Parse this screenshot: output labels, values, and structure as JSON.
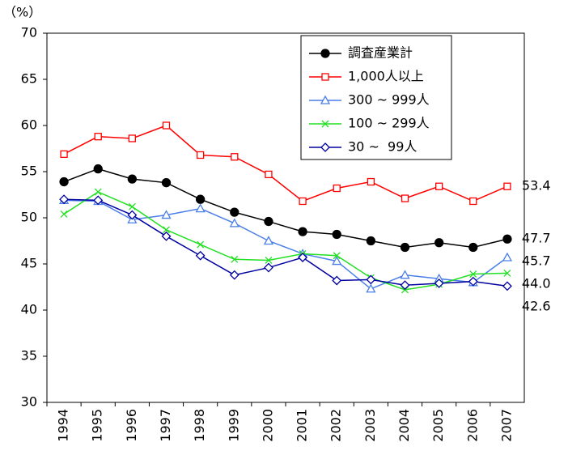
{
  "chart_data": {
    "type": "line",
    "y_unit_label": "（%）",
    "categories": [
      "1994",
      "1995",
      "1996",
      "1997",
      "1998",
      "1999",
      "2000",
      "2001",
      "2002",
      "2003",
      "2004",
      "2005",
      "2006",
      "2007"
    ],
    "ylim": [
      30,
      70
    ],
    "yticks": [
      30,
      35,
      40,
      45,
      50,
      55,
      60,
      65,
      70
    ],
    "series": [
      {
        "name": "調査産業計",
        "color": "#000000",
        "marker": "circle",
        "values": [
          53.9,
          55.3,
          54.2,
          53.8,
          52.0,
          50.6,
          49.6,
          48.5,
          48.2,
          47.5,
          46.8,
          47.3,
          46.8,
          47.7
        ],
        "value_labels": [
          null,
          null,
          null,
          null,
          null,
          null,
          null,
          null,
          null,
          null,
          null,
          null,
          null,
          "47.7"
        ]
      },
      {
        "name": "1,000人以上",
        "color": "#ff0000",
        "marker": "square",
        "values": [
          56.9,
          58.8,
          58.6,
          60.0,
          56.8,
          56.6,
          54.7,
          51.8,
          53.2,
          53.9,
          52.1,
          53.4,
          51.8,
          53.4
        ],
        "value_labels": [
          null,
          null,
          null,
          null,
          null,
          null,
          null,
          null,
          null,
          null,
          null,
          null,
          null,
          "53.4"
        ]
      },
      {
        "name": "300 ~ 999人",
        "color": "#4a7fe8",
        "marker": "triangle",
        "values": [
          51.9,
          51.8,
          49.8,
          50.3,
          51.0,
          49.4,
          47.5,
          46.1,
          45.3,
          42.3,
          43.8,
          43.4,
          43.0,
          45.7
        ],
        "value_labels": [
          null,
          null,
          null,
          null,
          null,
          null,
          null,
          null,
          null,
          null,
          null,
          null,
          null,
          "45.7"
        ]
      },
      {
        "name": "100 ~ 299人",
        "color": "#22e022",
        "marker": "x",
        "values": [
          50.4,
          52.8,
          51.2,
          48.7,
          47.1,
          45.5,
          45.4,
          46.1,
          45.9,
          43.5,
          42.2,
          42.8,
          43.9,
          44.0
        ],
        "value_labels": [
          null,
          null,
          null,
          null,
          null,
          null,
          null,
          null,
          null,
          null,
          null,
          null,
          null,
          "44.0"
        ]
      },
      {
        "name": "30 ~  99人",
        "color": "#0000a0",
        "marker": "diamond",
        "values": [
          52.0,
          51.9,
          50.3,
          48.0,
          45.9,
          43.8,
          44.6,
          45.7,
          43.2,
          43.3,
          42.7,
          42.9,
          43.1,
          42.6
        ],
        "value_labels": [
          null,
          null,
          null,
          null,
          null,
          null,
          null,
          null,
          null,
          null,
          null,
          null,
          null,
          "42.6"
        ]
      }
    ]
  }
}
